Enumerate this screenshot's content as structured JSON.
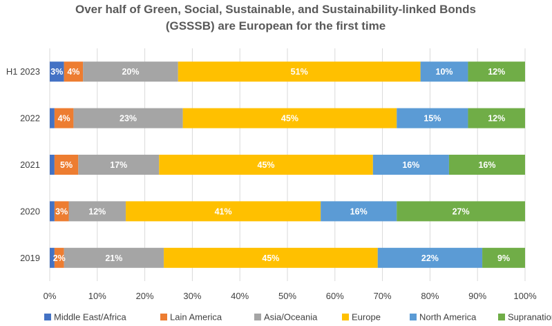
{
  "chart_data": {
    "type": "bar",
    "orientation": "horizontal",
    "stacked": true,
    "title_lines": [
      "Over half of Green, Social, Sustainable, and Sustainability-linked Bonds",
      "(GSSSB) are European for the first time"
    ],
    "categories": [
      "H1 2023",
      "2022",
      "2021",
      "2020",
      "2019"
    ],
    "series": [
      {
        "name": "Middle East/Africa",
        "color": "#4472C4",
        "values": [
          3,
          1,
          1,
          1,
          1
        ],
        "labels": [
          "3%",
          "",
          "",
          "",
          ""
        ]
      },
      {
        "name": "Lain America",
        "color": "#ED7D31",
        "values": [
          4,
          4,
          5,
          3,
          2
        ],
        "labels": [
          "4%",
          "4%",
          "5%",
          "3%",
          "2%"
        ]
      },
      {
        "name": "Asia/Oceania",
        "color": "#A5A5A5",
        "values": [
          20,
          23,
          17,
          12,
          21
        ],
        "labels": [
          "20%",
          "23%",
          "17%",
          "12%",
          "21%"
        ]
      },
      {
        "name": "Europe",
        "color": "#FFC000",
        "values": [
          51,
          45,
          45,
          41,
          45
        ],
        "labels": [
          "51%",
          "45%",
          "45%",
          "41%",
          "45%"
        ]
      },
      {
        "name": "North America",
        "color": "#5B9BD5",
        "values": [
          10,
          15,
          16,
          16,
          22
        ],
        "labels": [
          "10%",
          "15%",
          "16%",
          "16%",
          "22%"
        ]
      },
      {
        "name": "Supranational",
        "color": "#70AD47",
        "values": [
          12,
          12,
          16,
          27,
          9
        ],
        "labels": [
          "12%",
          "12%",
          "16%",
          "27%",
          "9%"
        ]
      }
    ],
    "x_ticks": [
      "0%",
      "10%",
      "20%",
      "30%",
      "40%",
      "50%",
      "60%",
      "70%",
      "80%",
      "90%",
      "100%"
    ],
    "xlim": [
      0,
      100
    ],
    "grid": true,
    "legend_position": "bottom"
  }
}
